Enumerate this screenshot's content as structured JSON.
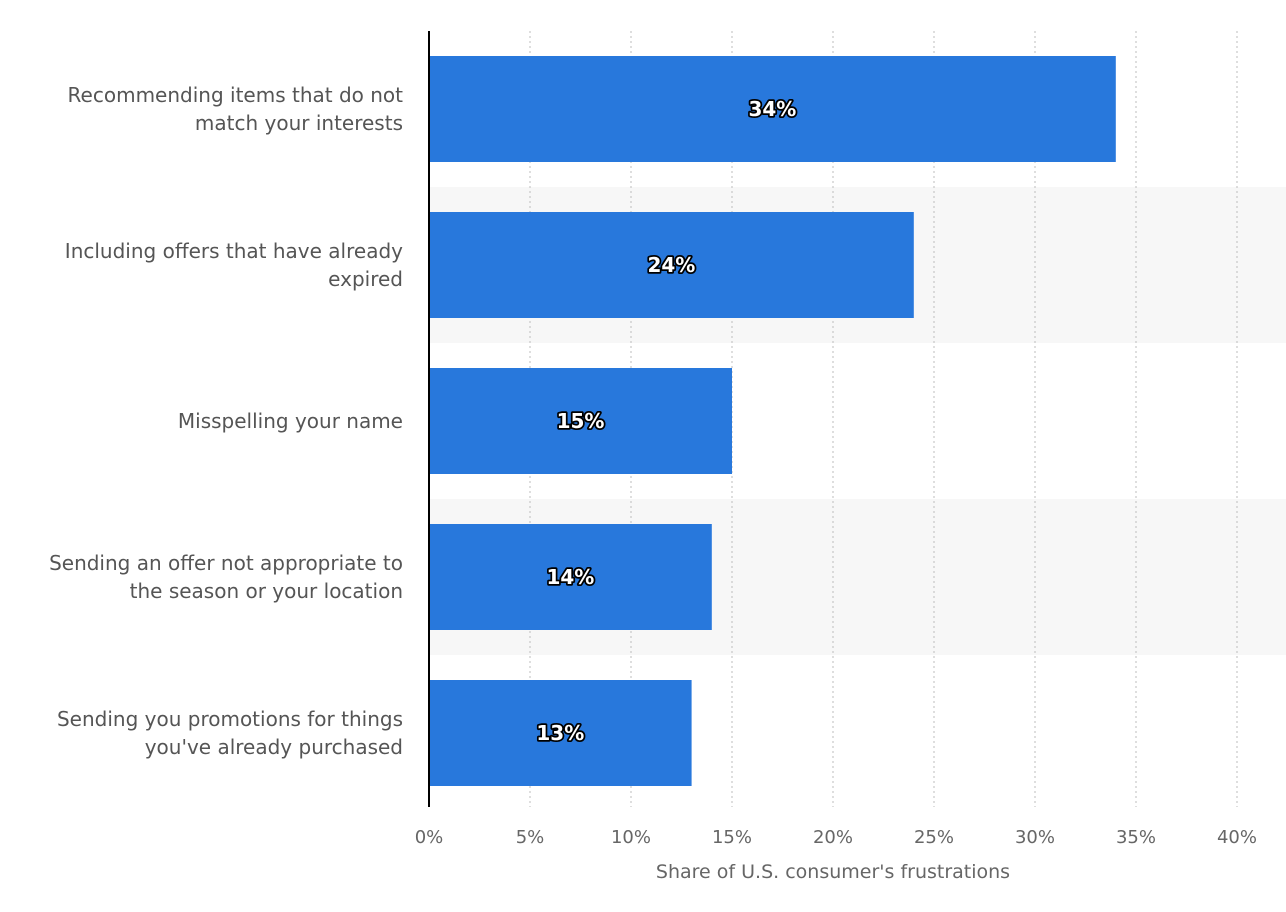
{
  "chart_data": {
    "type": "bar",
    "orientation": "horizontal",
    "categories": [
      [
        "Recommending items that do not",
        "match your interests"
      ],
      [
        "Including offers that have already",
        "expired"
      ],
      [
        "Misspelling your name"
      ],
      [
        "Sending an offer not appropriate to",
        "the season or your location"
      ],
      [
        "Sending you promotions for things",
        "you've already purchased"
      ]
    ],
    "values": [
      34,
      24,
      15,
      14,
      13
    ],
    "data_labels": [
      "34%",
      "24%",
      "15%",
      "14%",
      "13%"
    ],
    "xlabel": "Share of U.S. consumer's frustrations",
    "ylabel": "",
    "xlim": [
      0,
      40
    ],
    "x_ticks": [
      0,
      5,
      10,
      15,
      20,
      25,
      30,
      35,
      40
    ],
    "x_tick_labels": [
      "0%",
      "5%",
      "10%",
      "15%",
      "20%",
      "25%",
      "30%",
      "35%",
      "40%"
    ],
    "grid": "vertical dotted",
    "legend": "none",
    "colors": {
      "bar": "#2878dc",
      "band": "#f7f7f7",
      "grid": "#c8c8c8",
      "axis": "#000000"
    }
  }
}
